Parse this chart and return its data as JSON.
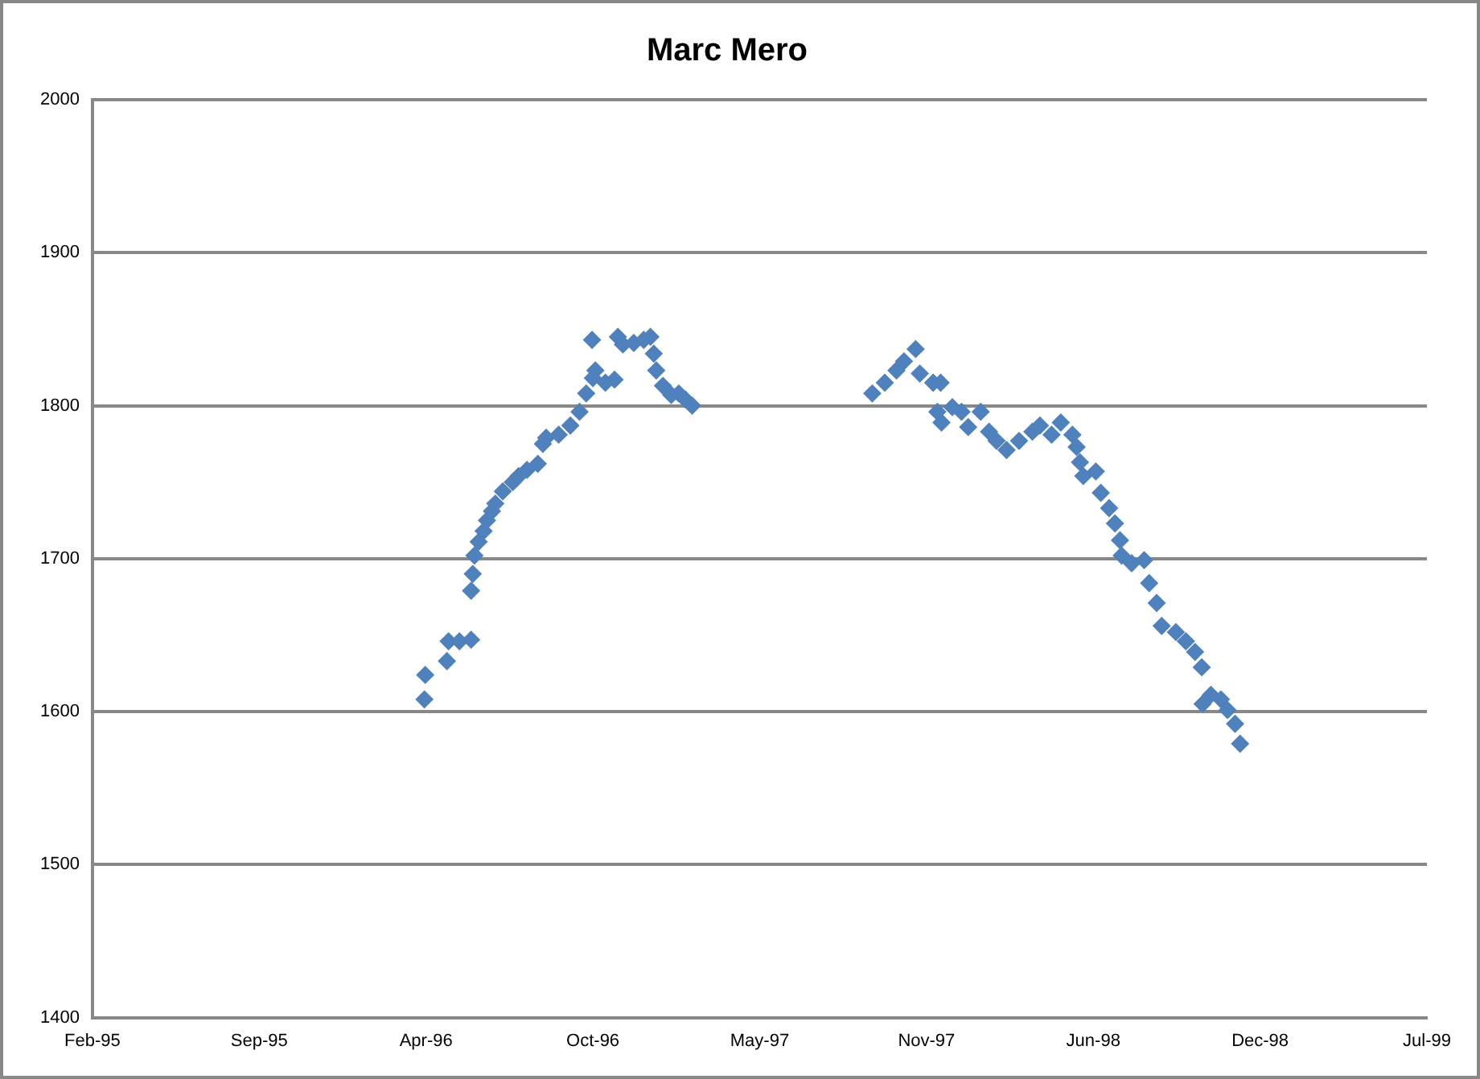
{
  "chart_data": {
    "type": "scatter",
    "title": "Marc Mero",
    "x": [
      "1996-04-01",
      "1996-04-02",
      "1996-04-28",
      "1996-04-30",
      "1996-05-13",
      "1996-05-27",
      "1996-05-27",
      "1996-05-29",
      "1996-05-31",
      "1996-06-05",
      "1996-06-11",
      "1996-06-15",
      "1996-06-21",
      "1996-06-25",
      "1996-07-04",
      "1996-07-16",
      "1996-07-23",
      "1996-08-02",
      "1996-08-15",
      "1996-08-21",
      "1996-08-25",
      "1996-09-09",
      "1996-09-23",
      "1996-10-04",
      "1996-10-12",
      "1996-10-20",
      "1996-10-23",
      "1996-11-04",
      "1996-11-15",
      "1996-10-19",
      "1996-11-19",
      "1996-11-25",
      "1996-12-08",
      "1996-12-20",
      "1996-12-28",
      "1997-01-01",
      "1997-01-04",
      "1997-01-12",
      "1997-01-22",
      "1997-01-31",
      "1997-02-08",
      "1997-02-16",
      "1997-09-20",
      "1997-10-05",
      "1997-10-19",
      "1997-10-28",
      "1997-11-11",
      "1997-11-16",
      "1997-12-02",
      "1997-12-11",
      "1997-12-07",
      "1997-12-12",
      "1997-12-25",
      "1998-01-05",
      "1998-01-13",
      "1998-01-28",
      "1998-02-07",
      "1998-02-16",
      "1998-02-28",
      "1998-03-15",
      "1998-03-31",
      "1998-04-09",
      "1998-04-23",
      "1998-05-04",
      "1998-05-18",
      "1998-05-23",
      "1998-05-27",
      "1998-05-31",
      "1998-06-15",
      "1998-06-21",
      "1998-07-01",
      "1998-07-08",
      "1998-07-14",
      "1998-07-16",
      "1998-07-28",
      "1998-08-12",
      "1998-08-18",
      "1998-08-27",
      "1998-09-02",
      "1998-09-19",
      "1998-10-01",
      "1998-10-12",
      "1998-10-20",
      "1998-10-21",
      "1998-10-31",
      "1998-11-12",
      "1998-11-20",
      "1998-11-29",
      "1998-12-05"
    ],
    "series": [
      {
        "color": "#4f81bd",
        "values": [
          1608,
          1624,
          1633,
          1646,
          1646,
          1647,
          1679,
          1690,
          1702,
          1711,
          1718,
          1725,
          1731,
          1736,
          1744,
          1750,
          1754,
          1758,
          1762,
          1775,
          1779,
          1781,
          1787,
          1796,
          1808,
          1818,
          1823,
          1815,
          1817,
          1843,
          1845,
          1840,
          1841,
          1843,
          1845,
          1834,
          1823,
          1813,
          1807,
          1808,
          1804,
          1800,
          1808,
          1815,
          1823,
          1829,
          1837,
          1821,
          1815,
          1815,
          1796,
          1789,
          1799,
          1796,
          1786,
          1796,
          1783,
          1777,
          1771,
          1777,
          1783,
          1787,
          1781,
          1789,
          1781,
          1773,
          1763,
          1754,
          1757,
          1743,
          1733,
          1723,
          1712,
          1702,
          1697,
          1699,
          1684,
          1671,
          1656,
          1652,
          1646,
          1639,
          1629,
          1605,
          1611,
          1608,
          1601,
          1592,
          1579
        ]
      }
    ],
    "xlim": [
      "1995-02-28",
      "1999-07-17"
    ],
    "xticks": [
      {
        "value": "1995-02-28",
        "label": "Feb-95"
      },
      {
        "value": "1995-09-16",
        "label": "Sep-95"
      },
      {
        "value": "1996-04-03",
        "label": "Apr-96"
      },
      {
        "value": "1996-10-20",
        "label": "Oct-96"
      },
      {
        "value": "1997-05-08",
        "label": "May-97"
      },
      {
        "value": "1997-11-24",
        "label": "Nov-97"
      },
      {
        "value": "1998-06-12",
        "label": "Jun-98"
      },
      {
        "value": "1998-12-29",
        "label": "Dec-98"
      },
      {
        "value": "1999-07-17",
        "label": "Jul-99"
      }
    ],
    "ylim": [
      1400,
      2000
    ],
    "yticks": [
      1400,
      1500,
      1600,
      1700,
      1800,
      1900,
      2000
    ],
    "grid": "y",
    "legend": false,
    "marker": "diamond"
  }
}
